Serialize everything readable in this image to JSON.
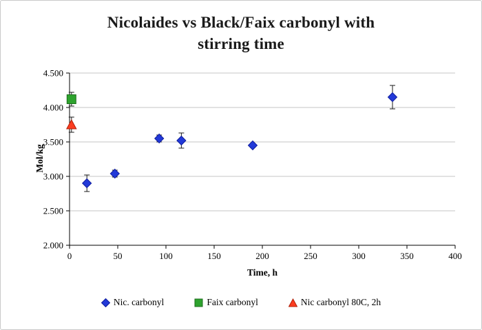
{
  "header": {
    "title_line1": "Nicolaides vs Black/Faix carbonyl with",
    "title_line2": "stirring time"
  },
  "chart_data": {
    "type": "scatter",
    "title": "Nicolaides vs Black/Faix carbonyl with stirring time",
    "xlabel": "Time, h",
    "ylabel": "Mol/kg",
    "xlim": [
      0,
      400
    ],
    "ylim": [
      2.0,
      4.5
    ],
    "x_ticks": [
      0,
      50,
      100,
      150,
      200,
      250,
      300,
      350,
      400
    ],
    "x_tick_labels": [
      "0",
      "50",
      "100",
      "150",
      "200",
      "250",
      "300",
      "350",
      "400"
    ],
    "y_ticks": [
      2.0,
      2.5,
      3.0,
      3.5,
      4.0,
      4.5
    ],
    "y_tick_labels": [
      "2.000",
      "2.500",
      "3.000",
      "3.500",
      "4.000",
      "4.500"
    ],
    "grid": "horizontal",
    "legend_position": "bottom",
    "error_bar_color": "#1a1a1a",
    "series": [
      {
        "name": "Nic. carbonyl",
        "marker": "diamond",
        "color": "#2239d8",
        "edge": "#101e9e",
        "points": [
          {
            "x": 18,
            "y": 2.9,
            "err": 0.12
          },
          {
            "x": 47,
            "y": 3.04,
            "err": 0.05
          },
          {
            "x": 93,
            "y": 3.55,
            "err": 0.05
          },
          {
            "x": 116,
            "y": 3.52,
            "err": 0.11
          },
          {
            "x": 190,
            "y": 3.45,
            "err": 0.03
          },
          {
            "x": 335,
            "y": 4.15,
            "err": 0.17
          }
        ]
      },
      {
        "name": "Faix carbonyl",
        "marker": "square",
        "color": "#2ea32e",
        "edge": "#1c6e1c",
        "points": [
          {
            "x": 2,
            "y": 4.12,
            "err": 0.1
          }
        ]
      },
      {
        "name": "Nic carbonyl 80C, 2h",
        "marker": "triangle",
        "color": "#fb3c20",
        "edge": "#b02008",
        "points": [
          {
            "x": 2,
            "y": 3.75,
            "err": 0.11
          }
        ]
      }
    ]
  }
}
